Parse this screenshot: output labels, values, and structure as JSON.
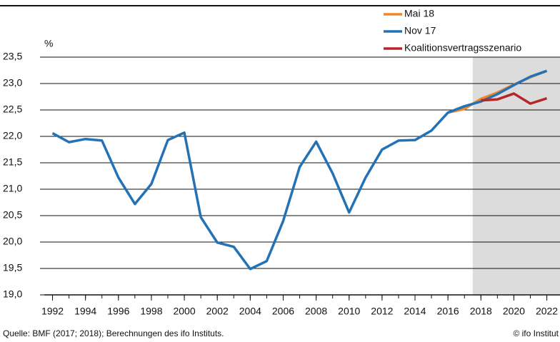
{
  "chart_data": {
    "type": "line",
    "y_unit": "%",
    "x": [
      1992,
      1993,
      1994,
      1995,
      1996,
      1997,
      1998,
      1999,
      2000,
      2001,
      2002,
      2003,
      2004,
      2005,
      2006,
      2007,
      2008,
      2009,
      2010,
      2011,
      2012,
      2013,
      2014,
      2015,
      2016,
      2017,
      2018,
      2019,
      2020,
      2021,
      2022
    ],
    "series": [
      {
        "name": "Mai 18",
        "color": "#f0882a",
        "values": [
          null,
          null,
          null,
          null,
          null,
          null,
          null,
          null,
          null,
          null,
          null,
          null,
          null,
          null,
          null,
          null,
          null,
          null,
          null,
          null,
          null,
          null,
          null,
          null,
          22.45,
          22.52,
          22.71,
          22.83,
          22.98,
          23.12,
          23.24
        ]
      },
      {
        "name": "Nov 17",
        "color": "#2372b5",
        "values": [
          22.06,
          21.89,
          21.95,
          21.92,
          21.22,
          20.72,
          21.1,
          21.93,
          22.07,
          20.47,
          19.99,
          19.91,
          19.49,
          19.64,
          20.4,
          21.42,
          21.9,
          21.3,
          20.56,
          21.22,
          21.75,
          21.92,
          21.93,
          22.11,
          22.45,
          22.57,
          22.66,
          22.8,
          22.97,
          23.13,
          23.24
        ]
      },
      {
        "name": "Koalitionsvertragsszenario",
        "color": "#b5262b",
        "values": [
          null,
          null,
          null,
          null,
          null,
          null,
          null,
          null,
          null,
          null,
          null,
          null,
          null,
          null,
          null,
          null,
          null,
          null,
          null,
          null,
          null,
          null,
          null,
          null,
          null,
          null,
          22.68,
          22.7,
          22.81,
          22.62,
          22.72
        ]
      }
    ],
    "xlim": [
      1991.5,
      2022.8
    ],
    "xticks": [
      1992,
      1994,
      1996,
      1998,
      2000,
      2002,
      2004,
      2006,
      2008,
      2010,
      2012,
      2014,
      2016,
      2018,
      2020,
      2022
    ],
    "ylim": [
      19,
      23.5
    ],
    "yticks": [
      {
        "value": 19,
        "label": "19,0"
      },
      {
        "value": 19.5,
        "label": "19,5"
      },
      {
        "value": 20,
        "label": "20,0"
      },
      {
        "value": 20.5,
        "label": "20,5"
      },
      {
        "value": 21,
        "label": "21,0"
      },
      {
        "value": 21.5,
        "label": "21,5"
      },
      {
        "value": 22,
        "label": "22,0"
      },
      {
        "value": 22.5,
        "label": "22,5"
      },
      {
        "value": 23,
        "label": "23,0"
      },
      {
        "value": 23.5,
        "label": "23,5"
      }
    ],
    "shaded_range": [
      2017.5,
      2022.8
    ],
    "grid": true,
    "legend": "top-right",
    "source": "Quelle: BMF (2017; 2018); Berechnungen des ifo Instituts.",
    "copyright": "© ifo Institut"
  }
}
